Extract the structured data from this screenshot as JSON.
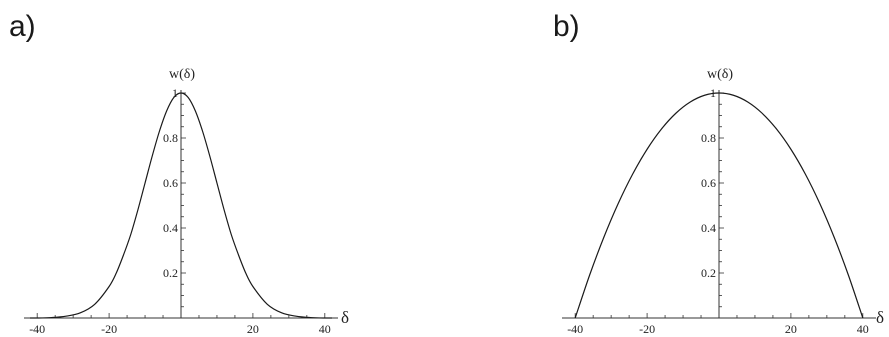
{
  "panels": {
    "a": {
      "label": "a)"
    },
    "b": {
      "label": "b)"
    }
  },
  "chart_data": [
    {
      "type": "line",
      "panel": "a)",
      "xlabel": "δ",
      "ylabel": "w(δ)",
      "xlim": [
        -42,
        42
      ],
      "ylim": [
        0,
        1.05
      ],
      "x_ticks": [
        -40,
        -20,
        20,
        40
      ],
      "y_ticks": [
        0.2,
        0.4,
        0.6,
        0.8,
        1
      ],
      "x_tick_labels": [
        "-40",
        "-20",
        "20",
        "40"
      ],
      "y_tick_labels": [
        "0.2",
        "0.4",
        "0.6",
        "0.8",
        "1"
      ],
      "series": [
        {
          "x": [
            -42,
            -40,
            -36,
            -32,
            -28,
            -24,
            -20,
            -18,
            -16,
            -14,
            -12,
            -10,
            -8,
            -6,
            -4,
            -2,
            0,
            2,
            4,
            6,
            8,
            10,
            12,
            14,
            16,
            18,
            20,
            24,
            28,
            32,
            36,
            40,
            42
          ],
          "y": [
            0.0,
            0.0,
            0.002,
            0.008,
            0.023,
            0.061,
            0.14,
            0.2,
            0.28,
            0.37,
            0.48,
            0.6,
            0.72,
            0.83,
            0.92,
            0.98,
            1.0,
            0.98,
            0.92,
            0.83,
            0.72,
            0.6,
            0.48,
            0.37,
            0.28,
            0.2,
            0.14,
            0.061,
            0.023,
            0.008,
            0.002,
            0.0,
            0.0
          ]
        }
      ],
      "color": "#1a1a1a"
    },
    {
      "type": "line",
      "panel": "b)",
      "xlabel": "δ",
      "ylabel": "w(δ)",
      "xlim": [
        -42,
        42
      ],
      "ylim": [
        0,
        1.05
      ],
      "x_ticks": [
        -40,
        -20,
        20,
        40
      ],
      "y_ticks": [
        0.2,
        0.4,
        0.6,
        0.8,
        1
      ],
      "x_tick_labels": [
        "-40",
        "-20",
        "20",
        "40"
      ],
      "y_tick_labels": [
        "0.2",
        "0.4",
        "0.6",
        "0.8",
        "1"
      ],
      "series": [
        {
          "x": [
            -40,
            -36,
            -32,
            -28,
            -24,
            -20,
            -16,
            -12,
            -8,
            -4,
            0,
            4,
            8,
            12,
            16,
            20,
            24,
            28,
            32,
            36,
            40
          ],
          "y": [
            0.0,
            0.19,
            0.36,
            0.51,
            0.64,
            0.75,
            0.84,
            0.91,
            0.96,
            0.99,
            1.0,
            0.99,
            0.96,
            0.91,
            0.84,
            0.75,
            0.64,
            0.51,
            0.36,
            0.19,
            0.0
          ]
        }
      ],
      "color": "#1a1a1a"
    }
  ]
}
